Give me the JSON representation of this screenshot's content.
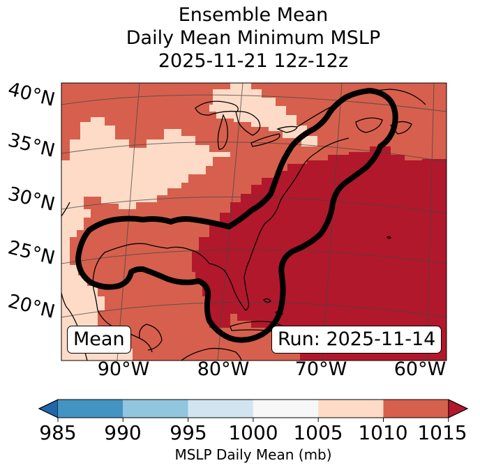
{
  "title": {
    "line1": "Ensemble Mean",
    "line2": "Daily Mean Minimum MSLP",
    "line3": "2025-11-21 12z-12z"
  },
  "map": {
    "region": "Eastern North America / Western Atlantic",
    "lat_labels": [
      "40°N",
      "35°N",
      "30°N",
      "25°N",
      "20°N"
    ],
    "lon_labels": [
      "90°W",
      "80°W",
      "70°W",
      "60°W"
    ],
    "label_left": "Mean",
    "label_right": "Run: 2025-11-14",
    "contour_color": "#000000"
  },
  "colorbar": {
    "label": "MSLP Daily Mean (mb)",
    "ticks": [
      "985",
      "990",
      "995",
      "1000",
      "1005",
      "1010",
      "1015"
    ],
    "colors": [
      "#4393c3",
      "#92c5de",
      "#d1e5f0",
      "#f7f7f7",
      "#fddbc7",
      "#d6604d",
      "#b2182b"
    ],
    "under_color": "#2166ac",
    "over_color": "#b2182b"
  },
  "field_colors": {
    "light": "#fddbc7",
    "medium": "#d6604d",
    "dark": "#b2182b"
  }
}
